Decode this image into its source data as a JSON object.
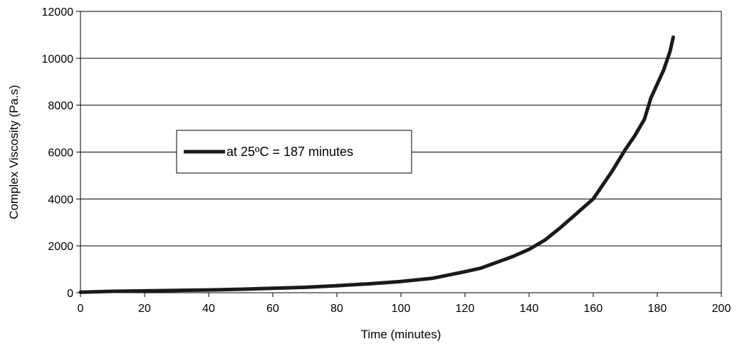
{
  "chart_data": {
    "type": "line",
    "xlabel": "Time (minutes)",
    "ylabel": "Complex Viscosity  (Pa.s)",
    "xlim": [
      0,
      200
    ],
    "ylim": [
      0,
      12000
    ],
    "x_ticks": [
      0,
      20,
      40,
      60,
      80,
      100,
      120,
      140,
      160,
      180,
      200
    ],
    "y_ticks": [
      0,
      2000,
      4000,
      6000,
      8000,
      10000,
      12000
    ],
    "grid": "horizontal",
    "legend_position": "center-left",
    "line_color": "#1a1a1a",
    "series": [
      {
        "name": "at 25ºC  = 187 minutes",
        "x": [
          0,
          10,
          20,
          30,
          40,
          50,
          60,
          70,
          80,
          90,
          100,
          110,
          120,
          125,
          130,
          135,
          140,
          145,
          150,
          155,
          160,
          163,
          166,
          170,
          173,
          176,
          178,
          180,
          182,
          184,
          185
        ],
        "y": [
          20,
          60,
          80,
          100,
          120,
          150,
          190,
          230,
          300,
          380,
          480,
          620,
          900,
          1050,
          1300,
          1550,
          1850,
          2250,
          2800,
          3400,
          4000,
          4600,
          5200,
          6100,
          6700,
          7400,
          8300,
          8900,
          9500,
          10300,
          10900
        ]
      }
    ]
  }
}
